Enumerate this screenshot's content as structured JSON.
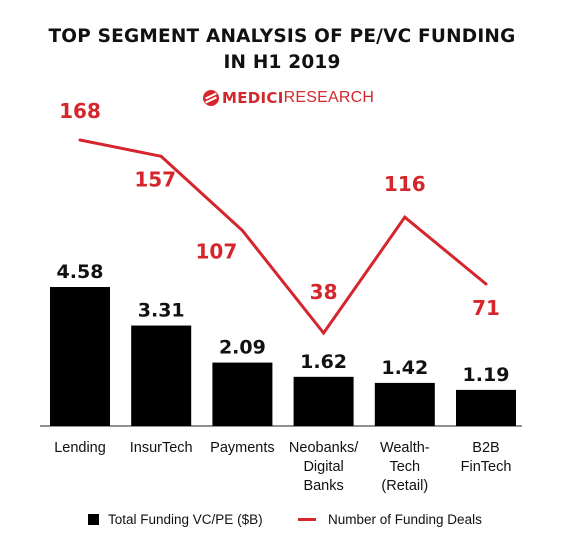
{
  "title_line1": "TOP SEGMENT ANALYSIS OF PE/VC FUNDING",
  "title_line2": "IN H1 2019",
  "logo": {
    "bold": "MEDICI",
    "light": "RESEARCH",
    "icon": "medici-logo-icon",
    "color": "#d5262d"
  },
  "chart_data": {
    "type": "bar",
    "categories": [
      [
        "Lending"
      ],
      [
        "InsurTech"
      ],
      [
        "Payments"
      ],
      [
        "Neobanks/",
        "Digital",
        "Banks"
      ],
      [
        "Wealth-",
        "Tech",
        "(Retail)"
      ],
      [
        "B2B",
        "FinTech"
      ]
    ],
    "series": [
      {
        "name": "Total Funding VC/PE ($B)",
        "type": "bar",
        "color": "#000000",
        "values": [
          4.58,
          3.31,
          2.09,
          1.62,
          1.42,
          1.19
        ],
        "labels": [
          "4.58",
          "3.31",
          "2.09",
          "1.62",
          "1.42",
          "1.19"
        ]
      },
      {
        "name": "Number of Funding Deals",
        "type": "line",
        "color": "#d5262d",
        "values": [
          168,
          157,
          107,
          38,
          116,
          71
        ],
        "labels": [
          "168",
          "157",
          "107",
          "38",
          "116",
          "71"
        ]
      }
    ],
    "legend_position": "bottom",
    "grid": false
  }
}
